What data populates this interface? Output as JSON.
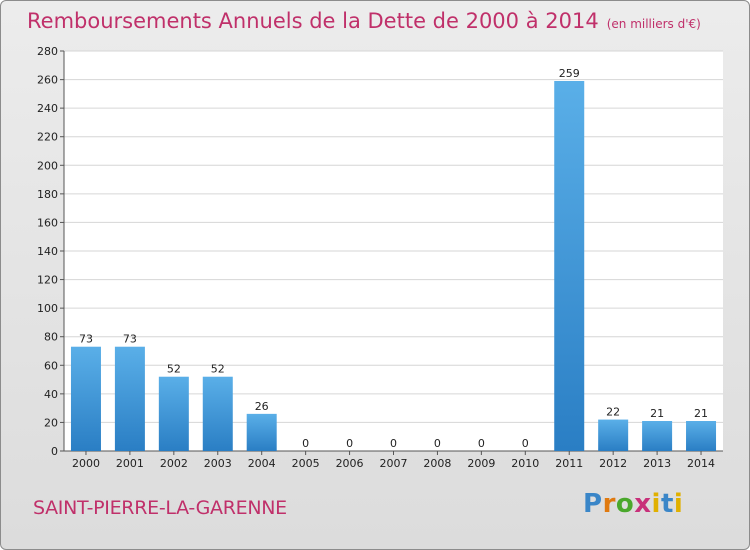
{
  "title": "Remboursements Annuels de la Dette de 2000 à 2014",
  "unit": "(en milliers d'€)",
  "place": "SAINT-PIERRE-LA-GARENNE",
  "logo": "Proxiti",
  "colors": {
    "title": "#c0306a",
    "bar_light": "#5aafe8",
    "bar_dark": "#2a7ec4",
    "background": "#e4e4e4"
  },
  "chart_data": {
    "type": "bar",
    "title": "Remboursements Annuels de la Dette de 2000 à 2014",
    "ylabel": "",
    "xlabel": "",
    "ylim": [
      0,
      280
    ],
    "yticks": [
      0,
      20,
      40,
      60,
      80,
      100,
      120,
      140,
      160,
      180,
      200,
      220,
      240,
      260,
      280
    ],
    "grid": true,
    "categories": [
      "2000",
      "2001",
      "2002",
      "2003",
      "2004",
      "2005",
      "2006",
      "2007",
      "2008",
      "2009",
      "2010",
      "2011",
      "2012",
      "2013",
      "2014"
    ],
    "values": [
      73,
      73,
      52,
      52,
      26,
      0,
      0,
      0,
      0,
      0,
      0,
      259,
      22,
      21,
      21
    ]
  }
}
